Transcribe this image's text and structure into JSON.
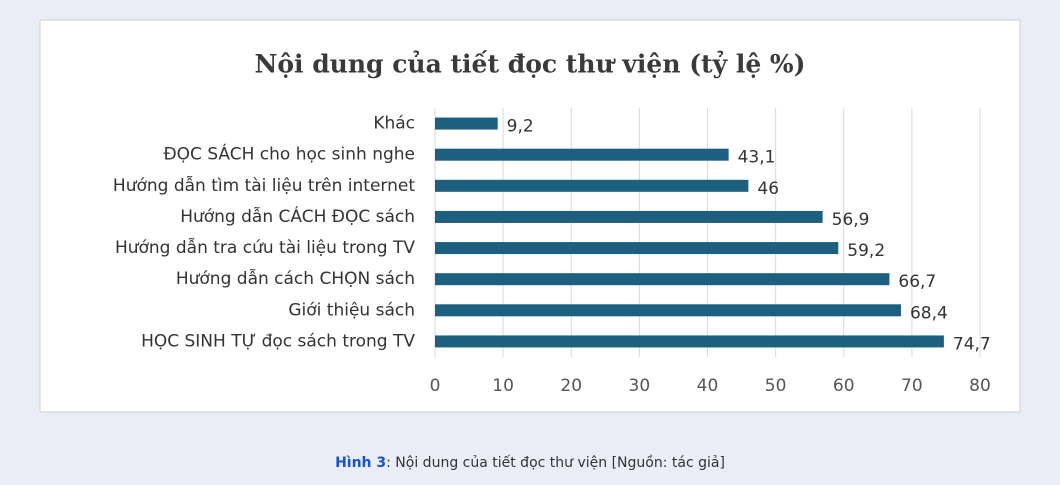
{
  "chart_data": {
    "type": "bar",
    "orientation": "horizontal",
    "title": "Nội dung của tiết đọc thư viện (tỷ lệ %)",
    "categories": [
      "Khác",
      "ĐỌC SÁCH cho học sinh nghe",
      "Hướng dẫn tìm tài liệu trên internet",
      "Hướng dẫn CÁCH ĐỌC sách",
      "Hướng dẫn tra cứu tài liệu trong TV",
      "Hướng dẫn cách CHỌN sách",
      "Giới thiệu sách",
      "HỌC SINH TỰ đọc sách trong TV"
    ],
    "values": [
      9.2,
      43.1,
      46,
      56.9,
      59.2,
      66.7,
      68.4,
      74.7
    ],
    "value_labels": [
      "9,2",
      "43,1",
      "46",
      "56,9",
      "59,2",
      "66,7",
      "68,4",
      "74,7"
    ],
    "color": "#1c5f7f",
    "xlim": [
      0,
      80
    ],
    "xticks": [
      0,
      10,
      20,
      30,
      40,
      50,
      60,
      70,
      80
    ],
    "grid": true
  },
  "caption": {
    "label": "Hình 3",
    "text": ": Nội dung của tiết đọc thư viện  [Nguồn: tác giả]"
  }
}
